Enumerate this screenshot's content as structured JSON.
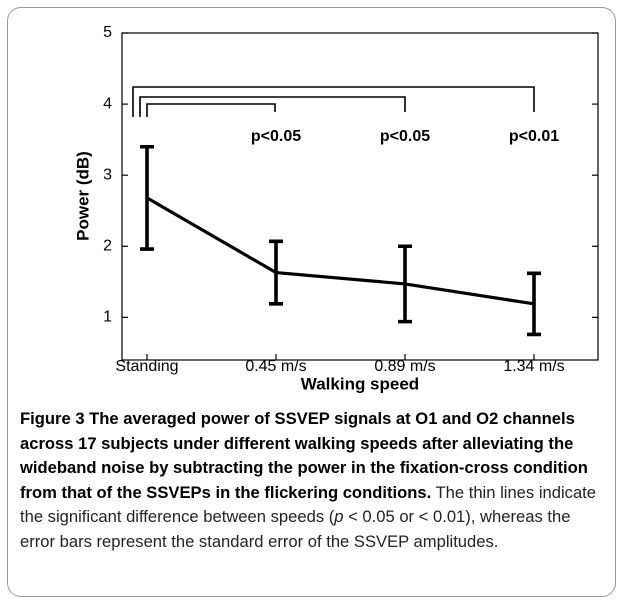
{
  "chart_data": {
    "type": "line",
    "xlabel": "Walking speed",
    "ylabel": "Power (dB)",
    "categories": [
      "Standing",
      "0.45 m/s",
      "0.89 m/s",
      "1.34 m/s"
    ],
    "series": [
      {
        "name": "Power",
        "color": "#000000",
        "values": [
          2.68,
          1.63,
          1.47,
          1.19
        ],
        "errors": [
          0.72,
          0.44,
          0.53,
          0.43
        ]
      }
    ],
    "ylim": [
      0.4,
      5
    ],
    "yticks": [
      1,
      2,
      3,
      4,
      5
    ],
    "grid": false,
    "annotations": [
      "p<0.05",
      "p<0.05",
      "p<0.01"
    ]
  },
  "caption": {
    "title": "Figure 3 The averaged power of SSVEP signals at O1 and O2 channels across 17 subjects under different walking speeds after alleviating the wideband noise by subtracting the power in the fixation-cross condition from that of the SSVEPs in the flickering conditions.",
    "text": [
      "The thin lines indicate the significant difference between speeds (",
      "p",
      " < 0.05 or < 0.01), whereas the error bars represent the standard error of the SSVEP amplitudes."
    ]
  }
}
